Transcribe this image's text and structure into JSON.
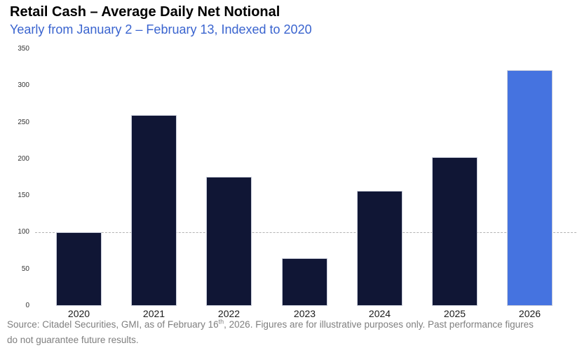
{
  "chart_data": {
    "type": "bar",
    "title": "Retail Cash – Average Daily Net Notional",
    "subtitle": "Yearly from January 2 – February 13, Indexed to 2020",
    "categories": [
      "2020",
      "2021",
      "2022",
      "2023",
      "2024",
      "2025",
      "2026"
    ],
    "values": [
      100,
      260,
      176,
      65,
      157,
      203,
      321
    ],
    "xlabel": "",
    "ylabel": "",
    "ylim": [
      0,
      350
    ],
    "yticks": [
      0,
      50,
      100,
      150,
      200,
      250,
      300,
      350
    ],
    "grid": "off",
    "legend": "none",
    "reference_line": {
      "value": 100,
      "style": "dashed",
      "color": "#b3b3b3"
    },
    "colors": {
      "bar_default": "#101635",
      "bar_highlight": "#4573e0",
      "highlight_index": 6
    }
  },
  "footer": {
    "line1_prefix": "Source: Citadel Securities, GMI, as of February 16",
    "line1_sup": "th",
    "line1_rest": ", 2026. Figures are for illustrative purposes only. Past performance figures",
    "line2": "do not guarantee future results."
  }
}
